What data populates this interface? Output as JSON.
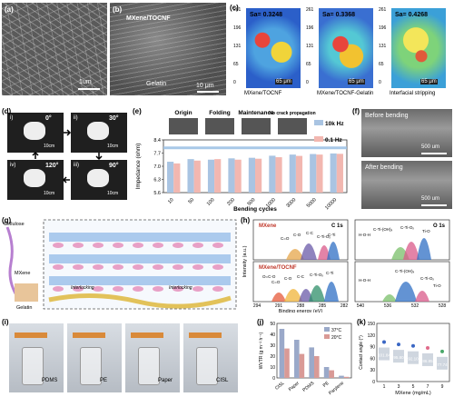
{
  "panels": {
    "a": {
      "label": "(a)",
      "scale": "1um"
    },
    "b": {
      "label": "(b)",
      "title": "MXene/TOCNF",
      "sublabel": "Gelatin",
      "scale": "10 μm"
    },
    "c": {
      "label": "(c)",
      "maps": [
        {
          "sa": "Sa= 0.3248",
          "caption": "MXene/TOCNF",
          "scale": "65 μm"
        },
        {
          "sa": "Sa= 0.3368",
          "caption": "MXene/TOCNF-Gelatin",
          "scale": "65 μm"
        },
        {
          "sa": "Sa= 0.4268",
          "caption": "Interfacial stripping",
          "scale": "65 μm"
        }
      ],
      "ticks": [
        "261",
        "196",
        "131",
        "65",
        "0"
      ]
    },
    "d": {
      "label": "(d)",
      "photos": [
        {
          "roman": "i)",
          "angle": "0°",
          "scale": "10cm"
        },
        {
          "roman": "ii)",
          "angle": "30°",
          "scale": "10cm"
        },
        {
          "roman": "iii)",
          "angle": "90°",
          "scale": "10cm"
        },
        {
          "roman": "iv)",
          "angle": "120°",
          "scale": "10cm"
        }
      ]
    },
    "f": {
      "label": "(f)",
      "top": "Before bending",
      "bottom": "After bending",
      "scale_top": "500 um",
      "scale_bottom": "500 um"
    },
    "g": {
      "label": "(g)",
      "cellulose": "Cellulose",
      "mxene": "MXene",
      "gelatin": "Gelatin",
      "interlocking1": "Interlocking",
      "interlocking2": "Interlocking"
    },
    "h": {
      "label": "(h)",
      "c1s_top": "MXene",
      "c1s_title": "C 1s",
      "c1s_bottom": "MXene/TOCNF",
      "o1s_title": "O 1s",
      "ylabel": "Intensity (a.u.)",
      "xlabel": "Binding energy (eV)",
      "peaks_c_top": [
        "C=O",
        "C-O",
        "C-C",
        "C-Ti-Oₓ",
        "C-Ti"
      ],
      "peaks_c_bottom": [
        "O=C-O",
        "C=O",
        "C-O",
        "C-C",
        "C-Ti-Oₓ",
        "C-Ti"
      ],
      "peaks_o_top": [
        "H-O-H",
        "C-Ti-(OH)ₓ",
        "C-Ti-Oₓ",
        "Ti-O"
      ],
      "peaks_o_bottom": [
        "H-O-H",
        "C-Ti-(OH)ₓ",
        "C-Ti-Oₓ",
        "Ti-O"
      ],
      "xticks_c": [
        "294",
        "291",
        "288",
        "285",
        "282"
      ],
      "xticks_o": [
        "540",
        "536",
        "532",
        "528"
      ]
    },
    "i": {
      "label": "(i)",
      "captions": [
        "PDMS",
        "PE",
        "Paper",
        "CISL"
      ]
    }
  },
  "chart_data": [
    {
      "id": "e",
      "type": "bar",
      "label": "(e)",
      "title": "",
      "xlabel": "Bending cycles",
      "ylabel": "Impedance (ohm)",
      "categories": [
        "10",
        "50",
        "100",
        "200",
        "500",
        "1000",
        "3000",
        "5000",
        "10000"
      ],
      "ylim": [
        5.6,
        8.4
      ],
      "yticks": [
        "5.6",
        "6.3",
        "7.0",
        "7.7",
        "8.4"
      ],
      "series": [
        {
          "name": "10k Hz",
          "color": "#a9c4e2",
          "values": [
            7.24,
            7.38,
            7.35,
            7.42,
            7.45,
            7.56,
            7.62,
            7.65,
            7.68
          ]
        },
        {
          "name": "0.1 Hz",
          "color": "#f2b7b0",
          "values": [
            7.15,
            7.3,
            7.38,
            7.35,
            7.4,
            7.48,
            7.55,
            7.62,
            7.66
          ]
        }
      ],
      "stage_labels": [
        "Origin",
        "Folding",
        "Maintenance",
        "No crack propagation"
      ]
    },
    {
      "id": "j",
      "type": "bar",
      "label": "(j)",
      "title": "",
      "xlabel": "",
      "ylabel": "WVTR (g m⁻² h⁻¹)",
      "categories": [
        "CISL",
        "Paper",
        "PDMS",
        "PE",
        "Parylene"
      ],
      "ylim": [
        0,
        50
      ],
      "yticks": [
        "0",
        "10",
        "20",
        "30",
        "40",
        "50"
      ],
      "series": [
        {
          "name": "37°C",
          "color": "#9aa9c9",
          "values": [
            45,
            35,
            28,
            10,
            2
          ]
        },
        {
          "name": "20°C",
          "color": "#d99a96",
          "values": [
            27,
            22,
            20,
            7,
            1
          ]
        }
      ]
    },
    {
      "id": "k",
      "type": "scatter",
      "label": "(k)",
      "title": "",
      "xlabel": "MXene (mg/mL)",
      "ylabel": "Contact angle (°)",
      "categories": [
        "1",
        "3",
        "5",
        "7",
        "9"
      ],
      "ylim": [
        0,
        150
      ],
      "yticks": [
        "0",
        "30",
        "60",
        "90",
        "120",
        "150"
      ],
      "values": [
        101.84,
        95.8,
        92.1,
        86.85,
        77.74
      ],
      "value_labels": [
        "101.84",
        "95.80",
        "92.10",
        "86.85",
        "77.74"
      ],
      "colors": [
        "#3a67c4",
        "#3a67c4",
        "#3a67c4",
        "#e06a8a",
        "#4aa86a"
      ]
    }
  ]
}
